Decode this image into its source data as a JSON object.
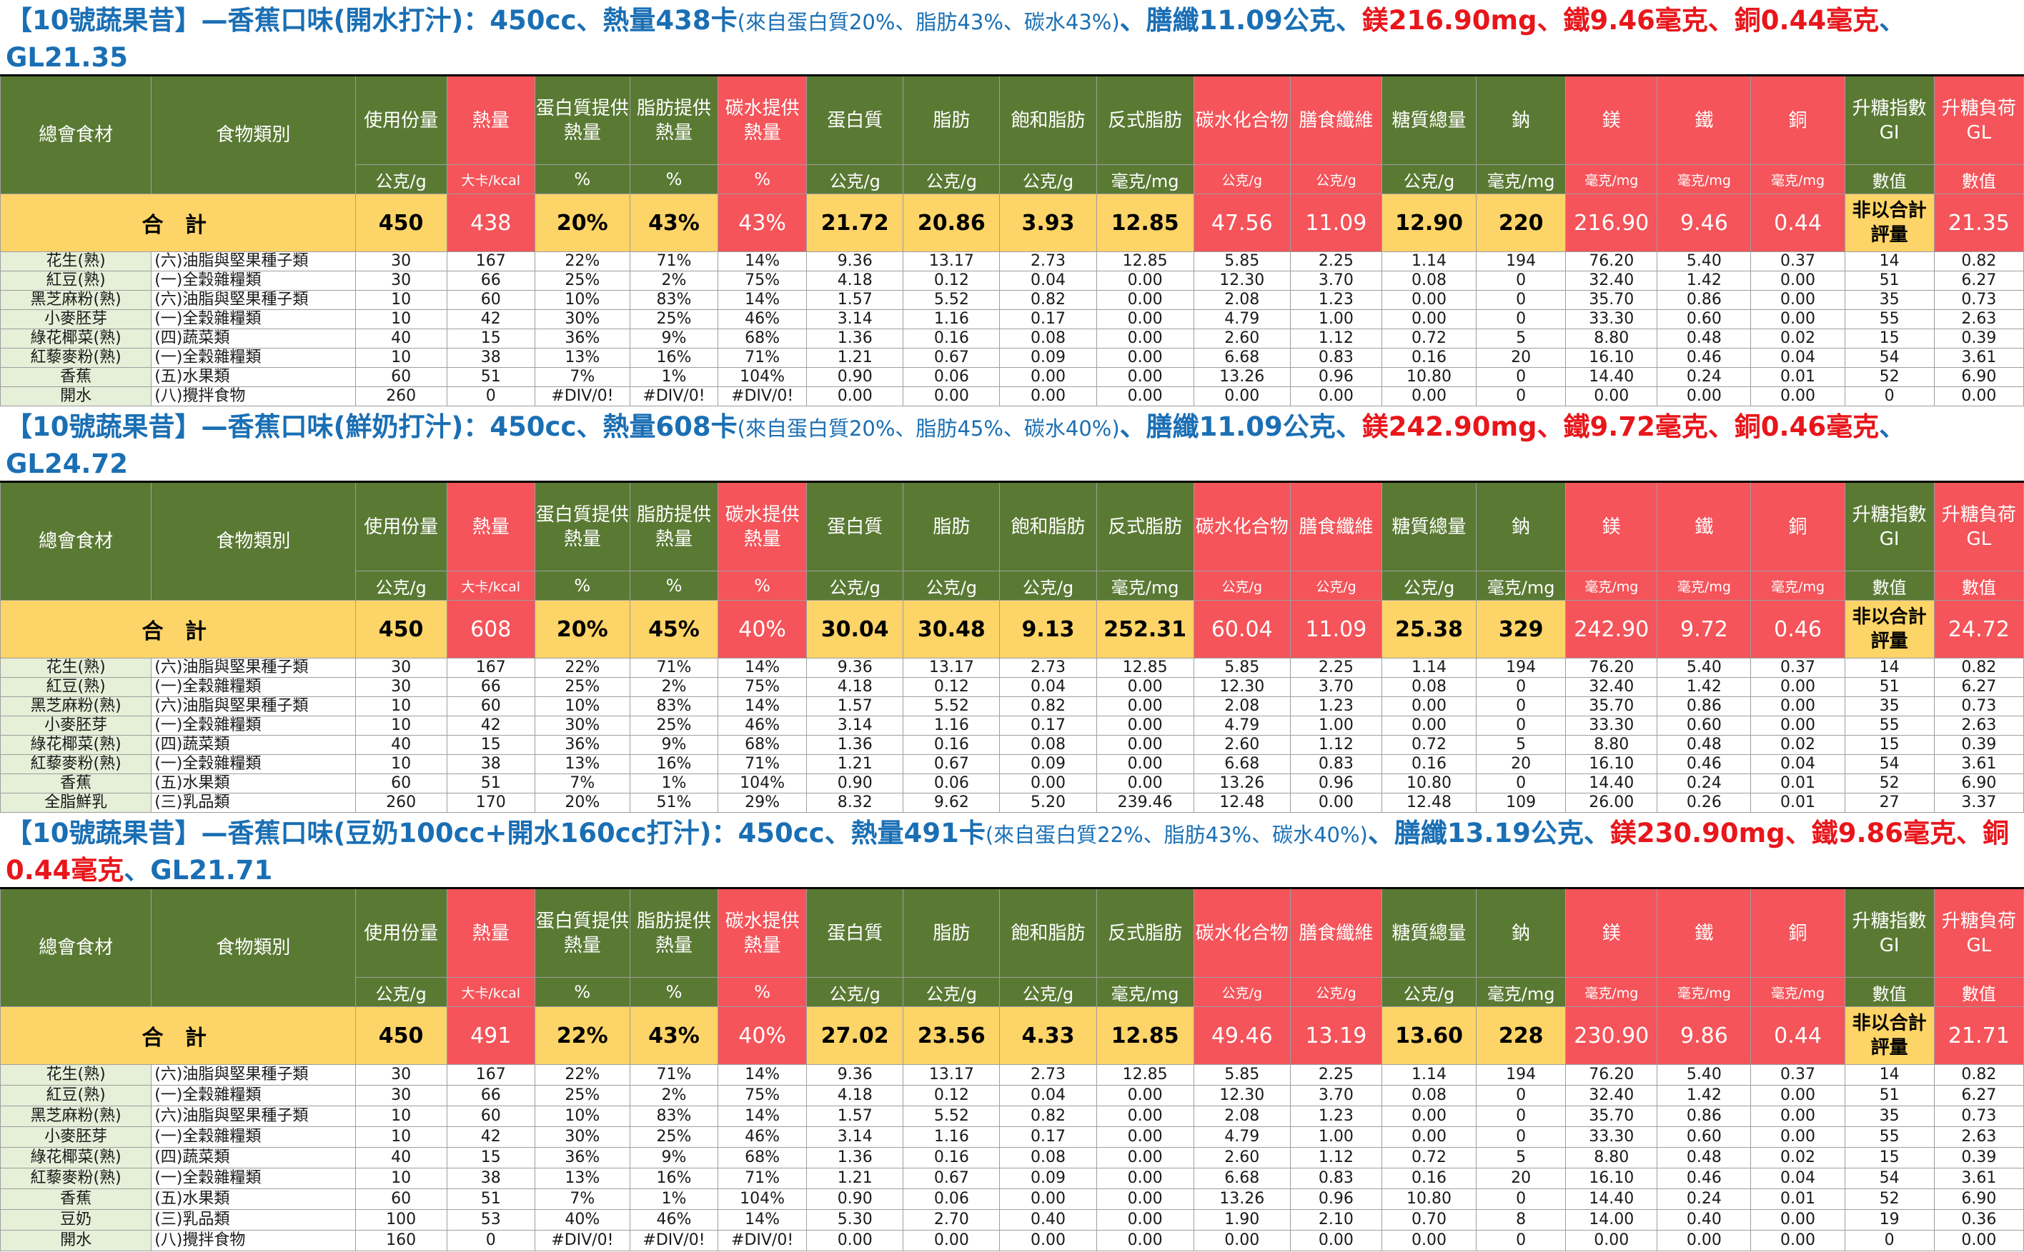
{
  "headers": [
    "總會食材",
    "食物類別",
    "使用份量",
    "熱量",
    "蛋白質提供熱量",
    "脂肪提供熱量",
    "碳水提供熱量",
    "蛋白質",
    "脂肪",
    "飽和脂肪",
    "反式脂肪",
    "碳水化合物",
    "膳食纖維",
    "糖質總量",
    "鈉",
    "鎂",
    "鐵",
    "銅",
    "升糖指數GI",
    "升糖負荷GL"
  ],
  "units": [
    "公克/g",
    "大卡/kcal",
    "%",
    "%",
    "%",
    "公克/g",
    "公克/g",
    "公克/g",
    "毫克/mg",
    "公克/g",
    "公克/g",
    "公克/g",
    "毫克/mg",
    "毫克/mg",
    "毫克/mg",
    "毫克/mg",
    "數值",
    "數值"
  ],
  "total_label": "合 計",
  "gi_total": "非以合計評量",
  "colors": {
    "green": "#5a7a34",
    "red": "#f4545a",
    "yellow": "#fdd467",
    "title_blue": "#1a6fb4",
    "title_red": "#e8161b",
    "name_bg": "#e6efd8"
  },
  "sections": [
    {
      "title_a": "【10號蔬果昔】—香蕉口味(開水打汁)：450cc、熱量438卡",
      "title_b": "(來自蛋白質20%、脂肪43%、碳水43%)",
      "title_c": "、膳纖11.09公克、",
      "title_d": "鎂216.90mg、鐵9.46毫克、銅0.44毫克",
      "title_e": "、GL21.35",
      "totals": [
        "450",
        "438",
        "20%",
        "43%",
        "43%",
        "21.72",
        "20.86",
        "3.93",
        "12.85",
        "47.56",
        "11.09",
        "12.90",
        "220",
        "216.90",
        "9.46",
        "0.44",
        "21.35"
      ],
      "rows": [
        [
          "花生(熟)",
          "(六)油脂與堅果種子類",
          "30",
          "167",
          "22%",
          "71%",
          "14%",
          "9.36",
          "13.17",
          "2.73",
          "12.85",
          "5.85",
          "2.25",
          "1.14",
          "194",
          "76.20",
          "5.40",
          "0.37",
          "14",
          "0.82"
        ],
        [
          "紅豆(熟)",
          "(一)全穀雜糧類",
          "30",
          "66",
          "25%",
          "2%",
          "75%",
          "4.18",
          "0.12",
          "0.04",
          "0.00",
          "12.30",
          "3.70",
          "0.08",
          "0",
          "32.40",
          "1.42",
          "0.00",
          "51",
          "6.27"
        ],
        [
          "黑芝麻粉(熟)",
          "(六)油脂與堅果種子類",
          "10",
          "60",
          "10%",
          "83%",
          "14%",
          "1.57",
          "5.52",
          "0.82",
          "0.00",
          "2.08",
          "1.23",
          "0.00",
          "0",
          "35.70",
          "0.86",
          "0.00",
          "35",
          "0.73"
        ],
        [
          "小麥胚芽",
          "(一)全穀雜糧類",
          "10",
          "42",
          "30%",
          "25%",
          "46%",
          "3.14",
          "1.16",
          "0.17",
          "0.00",
          "4.79",
          "1.00",
          "0.00",
          "0",
          "33.30",
          "0.60",
          "0.00",
          "55",
          "2.63"
        ],
        [
          "綠花椰菜(熟)",
          "(四)蔬菜類",
          "40",
          "15",
          "36%",
          "9%",
          "68%",
          "1.36",
          "0.16",
          "0.08",
          "0.00",
          "2.60",
          "1.12",
          "0.72",
          "5",
          "8.80",
          "0.48",
          "0.02",
          "15",
          "0.39"
        ],
        [
          "紅藜麥粉(熟)",
          "(一)全穀雜糧類",
          "10",
          "38",
          "13%",
          "16%",
          "71%",
          "1.21",
          "0.67",
          "0.09",
          "0.00",
          "6.68",
          "0.83",
          "0.16",
          "20",
          "16.10",
          "0.46",
          "0.04",
          "54",
          "3.61"
        ],
        [
          "香蕉",
          "(五)水果類",
          "60",
          "51",
          "7%",
          "1%",
          "104%",
          "0.90",
          "0.06",
          "0.00",
          "0.00",
          "13.26",
          "0.96",
          "10.80",
          "0",
          "14.40",
          "0.24",
          "0.01",
          "52",
          "6.90"
        ],
        [
          "開水",
          "(八)攪拌食物",
          "260",
          "0",
          "#DIV/0!",
          "#DIV/0!",
          "#DIV/0!",
          "0.00",
          "0.00",
          "0.00",
          "0.00",
          "0.00",
          "0.00",
          "0.00",
          "0",
          "0.00",
          "0.00",
          "0.00",
          "0",
          "0.00"
        ]
      ]
    },
    {
      "title_a": "【10號蔬果昔】—香蕉口味(鮮奶打汁)：450cc、熱量608卡",
      "title_b": "(來自蛋白質20%、脂肪45%、碳水40%)",
      "title_c": "、膳纖11.09公克、",
      "title_d": "鎂242.90mg、鐵9.72毫克、銅0.46毫克",
      "title_e": "、GL24.72",
      "totals": [
        "450",
        "608",
        "20%",
        "45%",
        "40%",
        "30.04",
        "30.48",
        "9.13",
        "252.31",
        "60.04",
        "11.09",
        "25.38",
        "329",
        "242.90",
        "9.72",
        "0.46",
        "24.72"
      ],
      "rows": [
        [
          "花生(熟)",
          "(六)油脂與堅果種子類",
          "30",
          "167",
          "22%",
          "71%",
          "14%",
          "9.36",
          "13.17",
          "2.73",
          "12.85",
          "5.85",
          "2.25",
          "1.14",
          "194",
          "76.20",
          "5.40",
          "0.37",
          "14",
          "0.82"
        ],
        [
          "紅豆(熟)",
          "(一)全穀雜糧類",
          "30",
          "66",
          "25%",
          "2%",
          "75%",
          "4.18",
          "0.12",
          "0.04",
          "0.00",
          "12.30",
          "3.70",
          "0.08",
          "0",
          "32.40",
          "1.42",
          "0.00",
          "51",
          "6.27"
        ],
        [
          "黑芝麻粉(熟)",
          "(六)油脂與堅果種子類",
          "10",
          "60",
          "10%",
          "83%",
          "14%",
          "1.57",
          "5.52",
          "0.82",
          "0.00",
          "2.08",
          "1.23",
          "0.00",
          "0",
          "35.70",
          "0.86",
          "0.00",
          "35",
          "0.73"
        ],
        [
          "小麥胚芽",
          "(一)全穀雜糧類",
          "10",
          "42",
          "30%",
          "25%",
          "46%",
          "3.14",
          "1.16",
          "0.17",
          "0.00",
          "4.79",
          "1.00",
          "0.00",
          "0",
          "33.30",
          "0.60",
          "0.00",
          "55",
          "2.63"
        ],
        [
          "綠花椰菜(熟)",
          "(四)蔬菜類",
          "40",
          "15",
          "36%",
          "9%",
          "68%",
          "1.36",
          "0.16",
          "0.08",
          "0.00",
          "2.60",
          "1.12",
          "0.72",
          "5",
          "8.80",
          "0.48",
          "0.02",
          "15",
          "0.39"
        ],
        [
          "紅藜麥粉(熟)",
          "(一)全穀雜糧類",
          "10",
          "38",
          "13%",
          "16%",
          "71%",
          "1.21",
          "0.67",
          "0.09",
          "0.00",
          "6.68",
          "0.83",
          "0.16",
          "20",
          "16.10",
          "0.46",
          "0.04",
          "54",
          "3.61"
        ],
        [
          "香蕉",
          "(五)水果類",
          "60",
          "51",
          "7%",
          "1%",
          "104%",
          "0.90",
          "0.06",
          "0.00",
          "0.00",
          "13.26",
          "0.96",
          "10.80",
          "0",
          "14.40",
          "0.24",
          "0.01",
          "52",
          "6.90"
        ],
        [
          "全脂鮮乳",
          "(三)乳品類",
          "260",
          "170",
          "20%",
          "51%",
          "29%",
          "8.32",
          "9.62",
          "5.20",
          "239.46",
          "12.48",
          "0.00",
          "12.48",
          "109",
          "26.00",
          "0.26",
          "0.01",
          "27",
          "3.37"
        ]
      ]
    },
    {
      "title_a": "【10號蔬果昔】—香蕉口味(豆奶100cc+開水160cc打汁)：450cc、熱量491卡",
      "title_b": "(來自蛋白質22%、脂肪43%、碳水40%)",
      "title_c": "、膳纖13.19公克、",
      "title_d": "鎂230.90mg、鐵9.86毫克、銅0.44毫克",
      "title_e": "、GL21.71",
      "totals": [
        "450",
        "491",
        "22%",
        "43%",
        "40%",
        "27.02",
        "23.56",
        "4.33",
        "12.85",
        "49.46",
        "13.19",
        "13.60",
        "228",
        "230.90",
        "9.86",
        "0.44",
        "21.71"
      ],
      "rows": [
        [
          "花生(熟)",
          "(六)油脂與堅果種子類",
          "30",
          "167",
          "22%",
          "71%",
          "14%",
          "9.36",
          "13.17",
          "2.73",
          "12.85",
          "5.85",
          "2.25",
          "1.14",
          "194",
          "76.20",
          "5.40",
          "0.37",
          "14",
          "0.82"
        ],
        [
          "紅豆(熟)",
          "(一)全穀雜糧類",
          "30",
          "66",
          "25%",
          "2%",
          "75%",
          "4.18",
          "0.12",
          "0.04",
          "0.00",
          "12.30",
          "3.70",
          "0.08",
          "0",
          "32.40",
          "1.42",
          "0.00",
          "51",
          "6.27"
        ],
        [
          "黑芝麻粉(熟)",
          "(六)油脂與堅果種子類",
          "10",
          "60",
          "10%",
          "83%",
          "14%",
          "1.57",
          "5.52",
          "0.82",
          "0.00",
          "2.08",
          "1.23",
          "0.00",
          "0",
          "35.70",
          "0.86",
          "0.00",
          "35",
          "0.73"
        ],
        [
          "小麥胚芽",
          "(一)全穀雜糧類",
          "10",
          "42",
          "30%",
          "25%",
          "46%",
          "3.14",
          "1.16",
          "0.17",
          "0.00",
          "4.79",
          "1.00",
          "0.00",
          "0",
          "33.30",
          "0.60",
          "0.00",
          "55",
          "2.63"
        ],
        [
          "綠花椰菜(熟)",
          "(四)蔬菜類",
          "40",
          "15",
          "36%",
          "9%",
          "68%",
          "1.36",
          "0.16",
          "0.08",
          "0.00",
          "2.60",
          "1.12",
          "0.72",
          "5",
          "8.80",
          "0.48",
          "0.02",
          "15",
          "0.39"
        ],
        [
          "紅藜麥粉(熟)",
          "(一)全穀雜糧類",
          "10",
          "38",
          "13%",
          "16%",
          "71%",
          "1.21",
          "0.67",
          "0.09",
          "0.00",
          "6.68",
          "0.83",
          "0.16",
          "20",
          "16.10",
          "0.46",
          "0.04",
          "54",
          "3.61"
        ],
        [
          "香蕉",
          "(五)水果類",
          "60",
          "51",
          "7%",
          "1%",
          "104%",
          "0.90",
          "0.06",
          "0.00",
          "0.00",
          "13.26",
          "0.96",
          "10.80",
          "0",
          "14.40",
          "0.24",
          "0.01",
          "52",
          "6.90"
        ],
        [
          "豆奶",
          "(三)乳品類",
          "100",
          "53",
          "40%",
          "46%",
          "14%",
          "5.30",
          "2.70",
          "0.40",
          "0.00",
          "1.90",
          "2.10",
          "0.70",
          "8",
          "14.00",
          "0.40",
          "0.00",
          "19",
          "0.36"
        ],
        [
          "開水",
          "(八)攪拌食物",
          "160",
          "0",
          "#DIV/0!",
          "#DIV/0!",
          "#DIV/0!",
          "0.00",
          "0.00",
          "0.00",
          "0.00",
          "0.00",
          "0.00",
          "0.00",
          "0",
          "0.00",
          "0.00",
          "0.00",
          "0",
          "0.00"
        ]
      ]
    }
  ]
}
